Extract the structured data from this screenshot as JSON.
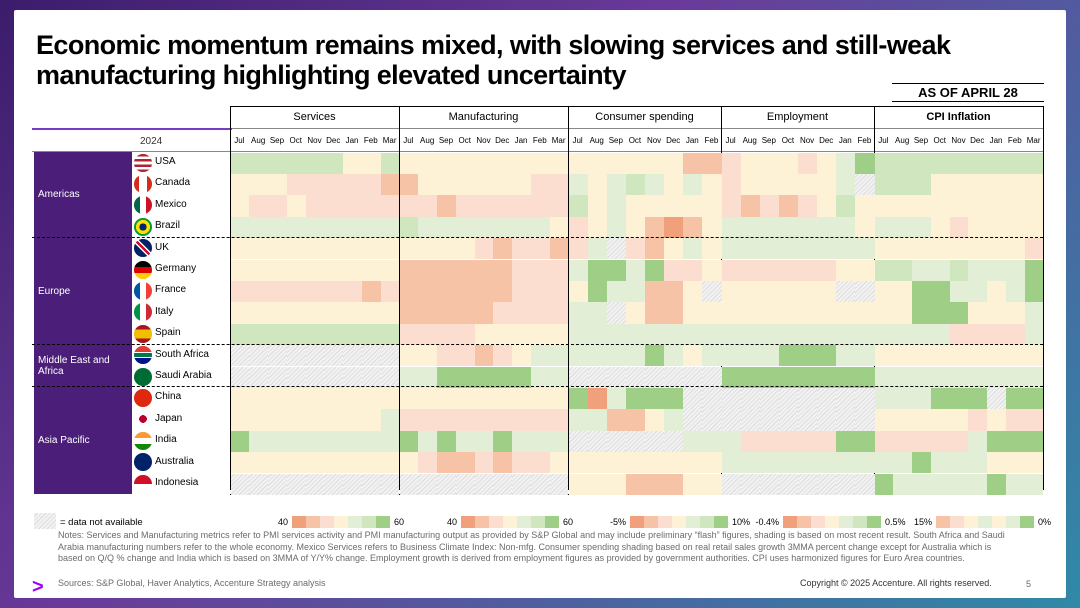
{
  "title": "Economic momentum remains mixed, with slowing services and still-weak manufacturing highlighting elevated uncertainty",
  "as_of": "AS OF APRIL 28",
  "year_label": "2024",
  "na_label": "= data not available",
  "notes": "Notes: Services and Manufacturing metrics refer to PMI services activity and PMI manufacturing output as provided by S&P Global and may include preliminary “flash” figures, shading is based on most recent result. South Africa and Saudi Arabia manufacturing numbers refer to the whole economy. Mexico Services refers to Business Climate Index: Non-mfg. Consumer spending shading based on real retail sales growth 3MMA percent change except for Australia which is based on Q/Q % change and India which is based on 3MMA of Y/Y% change. Employment growth is derived from employment figures as provided by government authorities. CPI uses harmonized figures for Euro Area countries.",
  "sources": "Sources: S&P Global, Haver Analytics, Accenture Strategy analysis",
  "copyright": "Copyright © 2025 Accenture. All rights reserved.",
  "page_number": "5",
  "colors": {
    "red": "#f0a07a",
    "red2": "#f6c3a6",
    "peach": "#fbded0",
    "yellow": "#fdf1d6",
    "lightgreen": "#e2efd6",
    "green": "#cfe6bf",
    "green2": "#9fcf87",
    "na": "na",
    "region_bg": "#4b1e7a"
  },
  "chart_data": {
    "type": "heatmap",
    "groups": [
      {
        "name": "Services",
        "bold": false,
        "months": [
          "Jul",
          "Aug",
          "Sep",
          "Oct",
          "Nov",
          "Dec",
          "Jan",
          "Feb",
          "Mar"
        ],
        "legend_low": "40",
        "legend_high": "60"
      },
      {
        "name": "Manufacturing",
        "bold": false,
        "months": [
          "Jul",
          "Aug",
          "Sep",
          "Oct",
          "Nov",
          "Dec",
          "Jan",
          "Feb",
          "Mar"
        ],
        "legend_low": "40",
        "legend_high": "60"
      },
      {
        "name": "Consumer spending",
        "bold": false,
        "months": [
          "Jul",
          "Aug",
          "Sep",
          "Oct",
          "Nov",
          "Dec",
          "Jan",
          "Feb"
        ],
        "legend_low": "-5%",
        "legend_high": "10%"
      },
      {
        "name": "Employment",
        "bold": false,
        "months": [
          "Jul",
          "Aug",
          "Sep",
          "Oct",
          "Nov",
          "Dec",
          "Jan",
          "Feb"
        ],
        "legend_low": "-0.4%",
        "legend_high": "0.5%"
      },
      {
        "name": "CPI Inflation",
        "bold": true,
        "months": [
          "Jul",
          "Aug",
          "Sep",
          "Oct",
          "Nov",
          "Dec",
          "Jan",
          "Feb",
          "Mar"
        ],
        "legend_low": "15%",
        "legend_high": "0%"
      }
    ],
    "regions": [
      {
        "name": "Americas",
        "countries": [
          "USA",
          "Canada",
          "Mexico",
          "Brazil"
        ]
      },
      {
        "name": "Europe",
        "countries": [
          "UK",
          "Germany",
          "France",
          "Italy",
          "Spain"
        ]
      },
      {
        "name": "Middle East and Africa",
        "countries": [
          "South Africa",
          "Saudi Arabia"
        ]
      },
      {
        "name": "Asia Pacific",
        "countries": [
          "China",
          "Japan",
          "India",
          "Australia",
          "Indonesia"
        ]
      }
    ],
    "scale": [
      "red",
      "red2",
      "peach",
      "yellow",
      "lightgreen",
      "green",
      "green2"
    ],
    "rows": {
      "USA": [
        "G G G G G G Y Y G",
        "Y Y Y Y Y Y Y Y Y",
        "Y Y Y Y Y Y R2 R2 -",
        "P Y Y Y P Y L G2 -",
        "G G G G G G G G G"
      ],
      "Canada": [
        "Y Y Y P P P P P R2",
        "R2 Y Y Y Y Y Y P P",
        "L Y L G L Y L Y -",
        "P Y Y Y Y Y L NA NA",
        "G G G Y Y Y Y Y Y"
      ],
      "Mexico": [
        "Y P P Y P P P P P",
        "P P R2 P P P P P P",
        "G Y L Y Y Y Y Y -",
        "P R2 P R2 P Y G Y -",
        "Y Y Y Y Y Y Y Y Y"
      ],
      "Brazil": [
        "L L L L L L L L L",
        "G L L L L L L L Y",
        "P Y L Y R2 R R2 Y -",
        "L L L L L L L Y -",
        "L L L Y P Y Y Y Y"
      ],
      "UK": [
        "Y Y Y Y Y Y Y Y Y",
        "Y Y Y Y P R2 P P R2",
        "P L NA P R2 Y L Y -",
        "L L L L L L L L -",
        "Y Y Y Y Y Y Y Y P"
      ],
      "Germany": [
        "Y Y Y Y Y Y Y Y Y",
        "R2 R2 R2 R2 R2 R2 P P P",
        "L G2 G2 L G2 P P Y -",
        "P P P P P P Y Y -",
        "G G L L G L L L G2"
      ],
      "France": [
        "P P P P P P P R2 P",
        "R2 R2 R2 R2 R2 R2 P P P",
        "Y G2 L L R2 R2 Y NA -",
        "Y Y Y Y Y Y NA NA -",
        "Y Y G2 G2 L L Y L G2"
      ],
      "Italy": [
        "Y Y Y Y Y Y Y Y Y",
        "R2 R2 R2 R2 R2 P P P P",
        "L L NA Y R2 R2 Y Y -",
        "Y Y Y Y Y Y Y Y -",
        "Y Y G2 G2 G2 Y Y Y L"
      ],
      "Spain": [
        "G G G G G G G G G",
        "P P P P Y Y Y Y Y",
        "L L L L L L L L -",
        "L L L L L L L L -",
        "L L L L P P P P L"
      ],
      "South Africa": [
        "NA NA NA NA NA NA NA NA NA",
        "Y Y P P R2 P Y L L",
        "L L L L G2 L Y L -",
        "L L L G2 G2 G2 L L -",
        "Y Y Y Y Y Y Y Y Y"
      ],
      "Saudi Arabia": [
        "NA NA NA NA NA NA NA NA NA",
        "L L G2 G2 G2 G2 G2 L L",
        "NA NA NA NA NA NA NA NA -",
        "G2 G2 G2 G2 G2 G2 G2 G2 -",
        "L L L L L L L L L"
      ],
      "China": [
        "Y Y Y Y Y Y Y Y Y",
        "Y Y Y Y Y Y Y Y Y",
        "G2 R L G2 G2 G2 NA NA -",
        "NA NA NA NA NA NA NA NA -",
        "L L L G2 G2 G2 NA G2 G2"
      ],
      "Japan": [
        "Y Y Y Y Y Y Y Y L",
        "P P P P P P P P P",
        "L L R2 R2 Y L NA NA -",
        "NA NA NA NA NA NA NA NA -",
        "Y Y Y Y Y P Y P P"
      ],
      "India": [
        "G2 L L L L L L L L",
        "G2 L G2 L L G2 L L L",
        "NA NA NA NA NA NA L L -",
        "L P P P P P G2 G2 -",
        "P P P P P L G2 G2 G2"
      ],
      "Australia": [
        "Y Y Y Y Y Y Y Y Y",
        "Y P R2 R2 P R2 P P Y",
        "Y Y Y Y Y Y Y Y -",
        "L L L L L L L L -",
        "L L G2 L L L Y Y Y"
      ],
      "Indonesia": [
        "NA NA NA NA NA NA NA NA NA",
        "NA NA NA NA NA NA NA NA NA",
        "Y Y Y R2 R2 R2 Y Y -",
        "NA NA NA NA NA NA NA NA -",
        "G2 L L L L L G2 L L"
      ]
    }
  }
}
